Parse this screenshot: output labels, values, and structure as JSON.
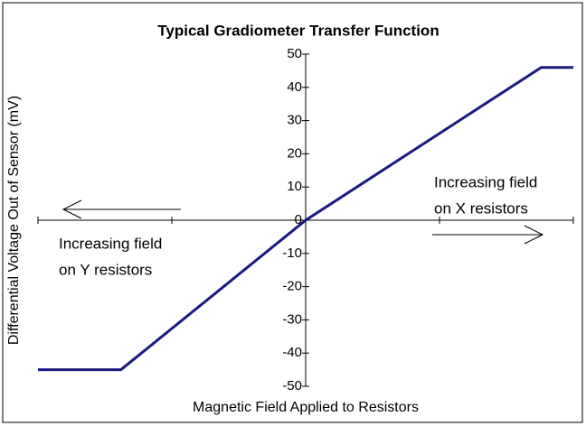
{
  "chart_data": {
    "type": "line",
    "title": "Typical Gradiometer Transfer Function",
    "x_label": "Magnetic Field Applied to Resistors",
    "y_label": "Differential Voltage Out of Sensor (mV)",
    "annotations": [
      [
        "Increasing field",
        "on Y resistors"
      ],
      [
        "Increasing field",
        "on X resistors"
      ]
    ],
    "x": [
      -2,
      -1.38,
      0,
      1.76,
      2
    ],
    "values": [
      -45,
      -45,
      0,
      46,
      46
    ],
    "color": "#1a1a80",
    "xlim": [
      -2,
      2
    ],
    "xticks": [
      -2,
      -1,
      0,
      1,
      2
    ],
    "ylim": [
      -50,
      50
    ],
    "yticks": [
      -50,
      -40,
      -30,
      -20,
      -10,
      0,
      10,
      20,
      30,
      40,
      50
    ],
    "grid": false
  }
}
